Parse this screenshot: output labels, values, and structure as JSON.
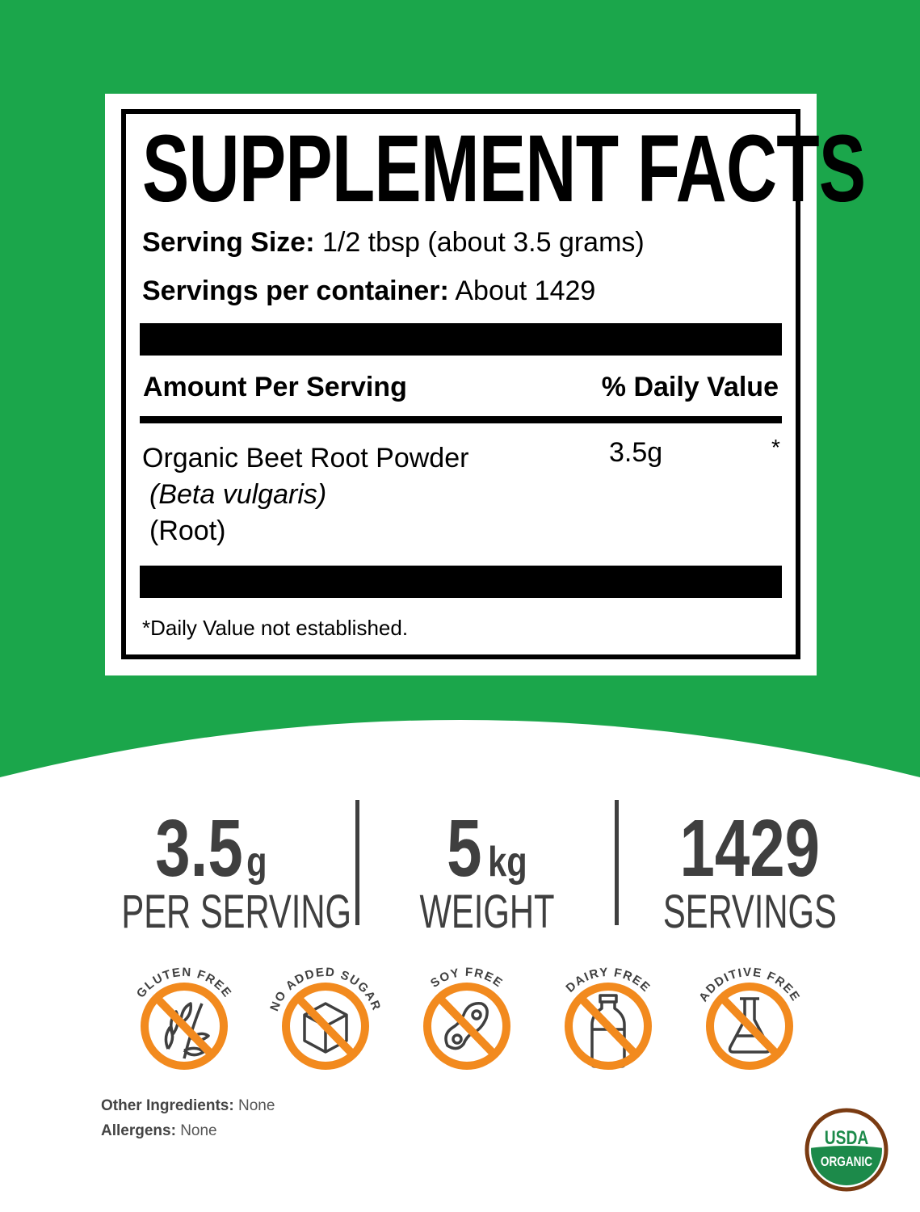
{
  "label": {
    "title": "SUPPLEMENT FACTS",
    "serving_size_label": "Serving Size:",
    "serving_size_value": "1/2 tbsp (about 3.5 grams)",
    "servings_label": "Servings per container:",
    "servings_value": "About 1429",
    "col_amount": "Amount Per Serving",
    "col_dv": "% Daily Value",
    "ingredients": [
      {
        "name": "Organic Beet Root Powder",
        "latin": "(Beta vulgaris)",
        "part": "(Root)",
        "amount": "3.5g",
        "dv": "*"
      }
    ],
    "footnote": "*Daily Value not established."
  },
  "stats": [
    {
      "number": "3.5",
      "unit": "g",
      "label": "PER SERVING"
    },
    {
      "number": "5",
      "unit": "kg",
      "label": "WEIGHT"
    },
    {
      "number": "1429",
      "unit": "",
      "label": "SERVINGS"
    }
  ],
  "badges": [
    {
      "text": "GLUTEN FREE",
      "icon": "wheat-icon"
    },
    {
      "text": "NO ADDED SUGAR",
      "icon": "sugar-cube-icon"
    },
    {
      "text": "SOY FREE",
      "icon": "soybean-icon"
    },
    {
      "text": "DAIRY FREE",
      "icon": "milk-bottle-icon"
    },
    {
      "text": "ADDITIVE FREE",
      "icon": "flask-icon"
    }
  ],
  "other_ingredients_label": "Other Ingredients:",
  "other_ingredients_value": "None",
  "allergens_label": "Allergens:",
  "allergens_value": "None",
  "seal": {
    "top": "USDA",
    "bottom": "ORGANIC"
  },
  "colors": {
    "green": "#1ba64b",
    "orange": "#f28a1e",
    "dark_text": "#3f3f3f",
    "usda_brown": "#7a3b12",
    "usda_green": "#1c8a4a"
  }
}
